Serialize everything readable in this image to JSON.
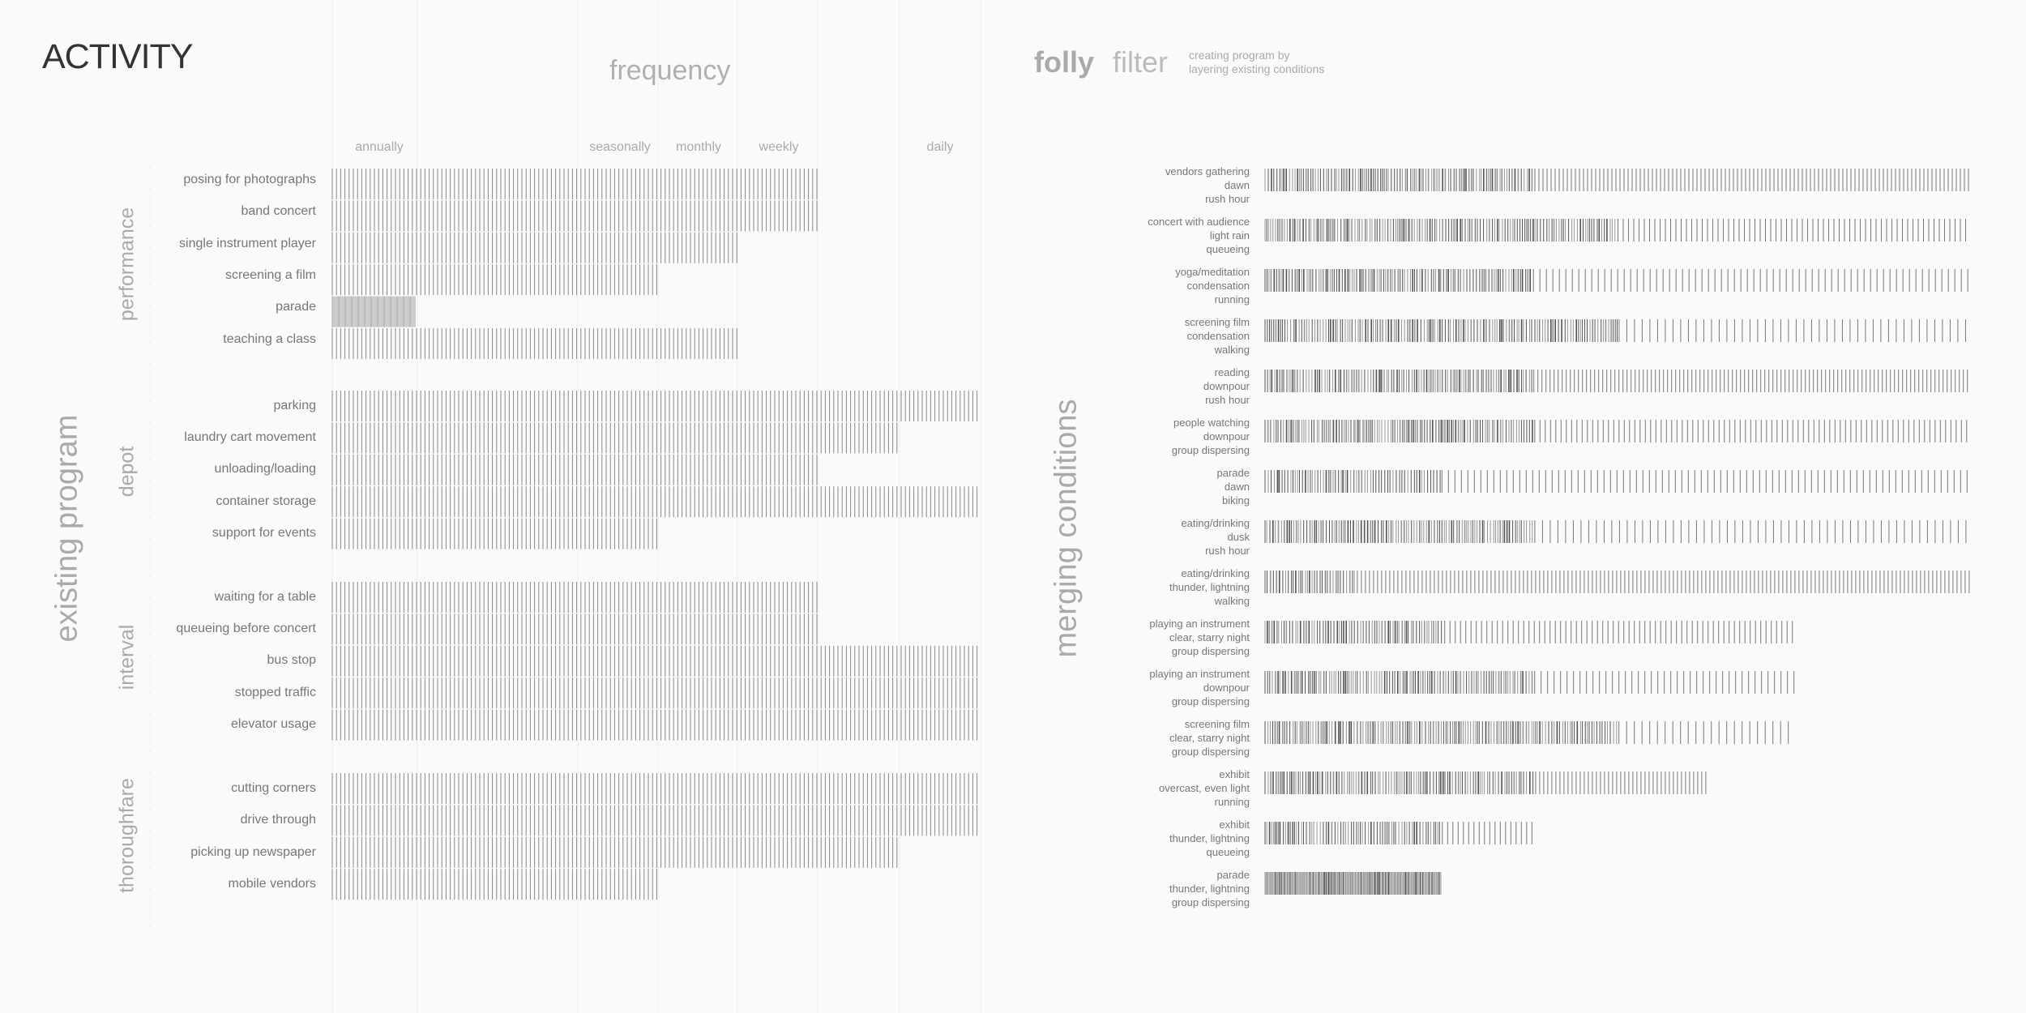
{
  "activity": {
    "title": "ACTIVITY",
    "frequency_title": "frequency",
    "frequency_levels": [
      "annually",
      "seasonally",
      "monthly",
      "weekly",
      "daily"
    ],
    "program_title": "existing program",
    "groups": [
      {
        "label": "performance",
        "rows": [
          {
            "label": "posing for photographs",
            "frequency": "weekly"
          },
          {
            "label": "band concert",
            "frequency": "weekly"
          },
          {
            "label": "single instrument player",
            "frequency": "monthly"
          },
          {
            "label": "screening a film",
            "frequency": "seasonally"
          },
          {
            "label": "parade",
            "frequency": "annually"
          },
          {
            "label": "teaching a class",
            "frequency": "monthly"
          }
        ]
      },
      {
        "label": "depot",
        "rows": [
          {
            "label": "parking",
            "frequency": "daily"
          },
          {
            "label": "laundry cart movement",
            "frequency": "between weekly and daily"
          },
          {
            "label": "unloading/loading",
            "frequency": "weekly"
          },
          {
            "label": "container storage",
            "frequency": "daily"
          },
          {
            "label": "support for events",
            "frequency": "seasonally"
          }
        ]
      },
      {
        "label": "interval",
        "rows": [
          {
            "label": "waiting for a table",
            "frequency": "weekly"
          },
          {
            "label": "queueing before concert",
            "frequency": "weekly"
          },
          {
            "label": "bus stop",
            "frequency": "daily"
          },
          {
            "label": "stopped traffic",
            "frequency": "daily"
          },
          {
            "label": "elevator usage",
            "frequency": "daily"
          }
        ]
      },
      {
        "label": "thoroughfare",
        "rows": [
          {
            "label": "cutting corners",
            "frequency": "daily"
          },
          {
            "label": "drive through",
            "frequency": "daily"
          },
          {
            "label": "picking up newspaper",
            "frequency": "between weekly and daily"
          },
          {
            "label": "mobile vendors",
            "frequency": "seasonally"
          }
        ]
      }
    ]
  },
  "filter": {
    "title_bold": "folly",
    "title_light": "filter",
    "subtitle_line1": "creating program by",
    "subtitle_line2": "layering existing conditions",
    "conditions_title": "merging conditions",
    "rows": [
      {
        "lines": [
          "vendors gathering",
          "dawn",
          "rush hour"
        ],
        "dense_fraction": 0.38,
        "total_fraction": 1.0
      },
      {
        "lines": [
          "concert with audience",
          "light rain",
          "queueing"
        ],
        "dense_fraction": 0.5,
        "total_fraction": 1.0
      },
      {
        "lines": [
          "yoga/meditation",
          "condensation",
          "running"
        ],
        "dense_fraction": 0.38,
        "total_fraction": 1.0
      },
      {
        "lines": [
          "screening film",
          "condensation",
          "walking"
        ],
        "dense_fraction": 0.5,
        "total_fraction": 1.0
      },
      {
        "lines": [
          "reading",
          "downpour",
          "rush hour"
        ],
        "dense_fraction": 0.38,
        "total_fraction": 1.0
      },
      {
        "lines": [
          "people watching",
          "downpour",
          "group dispersing"
        ],
        "dense_fraction": 0.38,
        "total_fraction": 1.0
      },
      {
        "lines": [
          "parade",
          "dawn",
          "biking"
        ],
        "dense_fraction": 0.25,
        "total_fraction": 1.0
      },
      {
        "lines": [
          "eating/drinking",
          "dusk",
          "rush hour"
        ],
        "dense_fraction": 0.38,
        "total_fraction": 1.0
      },
      {
        "lines": [
          "eating/drinking",
          "thunder, lightning",
          "walking"
        ],
        "dense_fraction": 0.13,
        "total_fraction": 1.0
      },
      {
        "lines": [
          "playing an instrument",
          "clear, starry night",
          "group dispersing"
        ],
        "dense_fraction": 0.25,
        "total_fraction": 0.75
      },
      {
        "lines": [
          "playing an instrument",
          "downpour",
          "group dispersing"
        ],
        "dense_fraction": 0.38,
        "total_fraction": 0.75
      },
      {
        "lines": [
          "screening film",
          "clear, starry night",
          "group dispersing"
        ],
        "dense_fraction": 0.5,
        "total_fraction": 0.75
      },
      {
        "lines": [
          "exhibit",
          "overcast, even light",
          "running"
        ],
        "dense_fraction": 0.38,
        "total_fraction": 0.63
      },
      {
        "lines": [
          "exhibit",
          "thunder, lightning",
          "queueing"
        ],
        "dense_fraction": 0.25,
        "total_fraction": 0.38
      },
      {
        "lines": [
          "parade",
          "thunder, lightning",
          "group dispersing"
        ],
        "dense_fraction": 0.25,
        "total_fraction": 0.25
      }
    ]
  }
}
